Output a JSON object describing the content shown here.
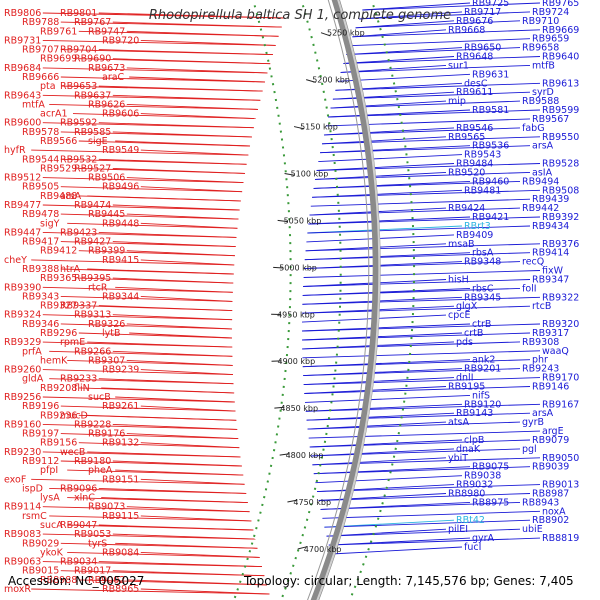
{
  "title": "Rhodopirellula baltica SH 1, complete genome",
  "accession": "Accession: NC_005027",
  "topology": "Topology: circular; Length: 7,145,576 bp; Genes: 7,405",
  "colors": {
    "forward": "#e02020",
    "reverse": "#1a1ad6",
    "rna": "#2bb5e0",
    "backbone": "#888888"
  },
  "ticks": [
    "5250 kbp",
    "5200 kbp",
    "5150 kbp",
    "5100 kbp",
    "5050 kbp",
    "5000 kbp",
    "4950 kbp",
    "4900 kbp",
    "4850 kbp",
    "4800 kbp",
    "4750 kbp",
    "4700 kbp"
  ],
  "left_labels": [
    "RB9806",
    "RB9801",
    "RB9788",
    "RB9767",
    "RB9761",
    "RB9747",
    "RB9731",
    "RB9720",
    "RB9707",
    "RB9704",
    "RB9699",
    "RB9690",
    "RB9684",
    "RB9673",
    "RB9666",
    "araC",
    "pta",
    "RB9653",
    "RB9643",
    "RB9637",
    "mtfA",
    "RB9626",
    "acrA1",
    "RB9606",
    "RB9600",
    "RB9592",
    "RB9578",
    "RB9585",
    "RB9566",
    "sigE",
    "hyfR",
    "RB9549",
    "RB9544",
    "RB9532",
    "RB9529",
    "RB9527",
    "RB9512",
    "RB9506",
    "RB9505",
    "RB9496",
    "RB9488",
    "arsA",
    "RB9477",
    "RB9474",
    "RB9478",
    "RB9445",
    "sigY",
    "RB9448",
    "RB9447",
    "RB9423",
    "RB9417",
    "RB9427",
    "RB9412",
    "RB9399",
    "cheY",
    "RB9415",
    "RB9388",
    "htrA",
    "RB9365",
    "RB9395",
    "RB9390",
    "rtcR",
    "RB9343",
    "RB9344",
    "RB9327",
    "RB9337",
    "RB9324",
    "RB9313",
    "RB9346",
    "RB9326",
    "RB9296",
    "lytB",
    "RB9329",
    "rpmE",
    "prfA",
    "RB9266",
    "hemK",
    "RB9307",
    "RB9260",
    "RB9239",
    "gldA",
    "RB9233",
    "RB9208",
    "fliN",
    "RB9256",
    "sucB",
    "RB9196",
    "RB9261",
    "RB9236",
    "mucD",
    "RB9160",
    "RB9228",
    "RB9197",
    "RB9176",
    "RB9156",
    "RB9132",
    "RB9230",
    "wecB",
    "RB9112",
    "RB9180",
    "pfpI",
    "pheA",
    "exoF",
    "RB9151",
    "ispD",
    "RB9096",
    "lysA",
    "xlnC",
    "RB9114",
    "RB9073",
    "rsmC",
    "RB9115",
    "sucA",
    "RB9047",
    "RB9083",
    "RB9053",
    "RB9029",
    "tyrS",
    "ykoK",
    "RB9084",
    "RB9063",
    "RB9034",
    "RB9015",
    "RB9017",
    "RB8988",
    "RB9002",
    "moxR",
    "RB8965"
  ],
  "right_labels": [
    "RB9765",
    "RB9725",
    "RB9724",
    "RB9717",
    "RB9710",
    "RB9676",
    "RB9669",
    "RB9668",
    "RB9659",
    "RB9650",
    "RB9658",
    "RB9648",
    "RB9640",
    "sur1",
    "mtfB",
    "RB9631",
    "RB9613",
    "desC",
    "syrD",
    "RB9611",
    "RB9588",
    "mip",
    "RB9599",
    "RB9581",
    "RB9567",
    "RB9546",
    "fabG",
    "RB9565",
    "RB9550",
    "RB9536",
    "arsA",
    "RB9543",
    "RB9528",
    "RB9484",
    "asIA",
    "RB9520",
    "RB9494",
    "RB9460",
    "RB9508",
    "RB9481",
    "RB9439",
    "RB9424",
    "RB9442",
    "RB9421",
    "RB9392",
    "RBrt3",
    "RB9434",
    "RB9409",
    "RB9376",
    "msaB",
    "RB9414",
    "rbsA",
    "recQ",
    "RB9348",
    "fixW",
    "hisH",
    "RB9347",
    "rbsC",
    "folI",
    "RB9345",
    "RB9322",
    "glgX",
    "rtcB",
    "cpcE",
    "RB9320",
    "ctrB",
    "RB9317",
    "crtB",
    "RB9308",
    "pds",
    "waaQ",
    "ank2",
    "phr",
    "RB9201",
    "RB9243",
    "dnlI",
    "RB9170",
    "RB9195",
    "RB9146",
    "nifS",
    "RB9167",
    "RB9120",
    "arsA",
    "RB9143",
    "gyrB",
    "atsA",
    "argE",
    "clpB",
    "RB9079",
    "dnaK",
    "pgl",
    "ybiT",
    "RB9050",
    "RB9075",
    "RB9039",
    "RB9038",
    "RB9013",
    "RB9032",
    "RB8987",
    "RB8980",
    "RB8943",
    "RB8975",
    "noxA",
    "RBt42",
    "RB8902",
    "pilEI",
    "ubiE",
    "gyrA",
    "RB8819",
    "fucI"
  ],
  "rna_labels": [
    "RBrt3",
    "RBt42"
  ]
}
